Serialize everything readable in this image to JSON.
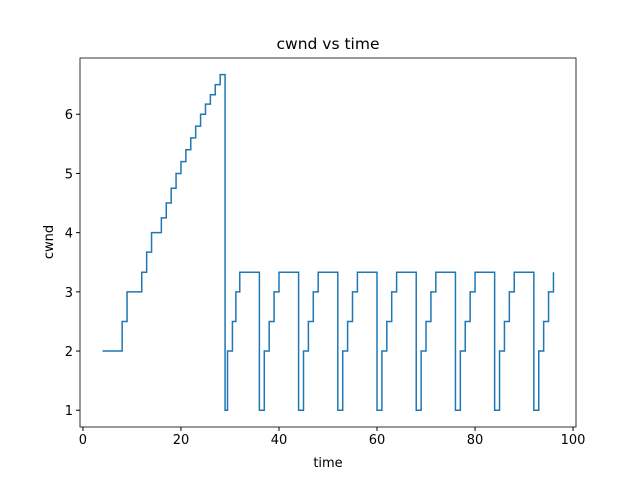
{
  "chart_data": {
    "type": "step",
    "title": "cwnd vs time",
    "x_label": "time",
    "y_label": "cwnd",
    "series": [
      {
        "name": "cwnd",
        "color": "#1f77b4",
        "x": [
          4,
          8,
          9,
          12,
          13,
          14,
          16,
          17,
          18,
          19,
          20,
          21,
          22,
          23,
          24,
          25,
          26,
          27,
          28,
          29,
          29.5,
          30.5,
          31.2,
          32,
          36,
          37,
          38,
          39,
          40,
          44,
          45,
          46,
          47,
          48,
          52,
          53,
          54,
          55,
          56,
          60,
          61,
          62,
          63,
          64,
          68,
          69,
          70,
          71,
          72,
          76,
          77,
          78,
          79,
          80,
          84,
          85,
          86,
          87,
          88,
          92,
          93,
          94,
          95,
          96
        ],
        "values": [
          2,
          2.5,
          3,
          3.33,
          3.67,
          4,
          4.25,
          4.5,
          4.75,
          5,
          5.2,
          5.4,
          5.6,
          5.8,
          6,
          6.17,
          6.33,
          6.5,
          6.67,
          1,
          2,
          2.5,
          3,
          3.33,
          1,
          2,
          2.5,
          3,
          3.33,
          1,
          2,
          2.5,
          3,
          3.33,
          1,
          2,
          2.5,
          3,
          3.33,
          1,
          2,
          2.5,
          3,
          3.33,
          1,
          2,
          2.5,
          3,
          3.33,
          1,
          2,
          2.5,
          3,
          3.33,
          1,
          2,
          2.5,
          3,
          3.33,
          1,
          2,
          2.5,
          3,
          3.33
        ]
      }
    ],
    "xlim": [
      -0.6,
      100.6
    ],
    "ylim": [
      0.717,
      6.95
    ],
    "xticks": [
      0,
      20,
      40,
      60,
      80,
      100
    ],
    "yticks": [
      1,
      2,
      3,
      4,
      5,
      6
    ]
  }
}
